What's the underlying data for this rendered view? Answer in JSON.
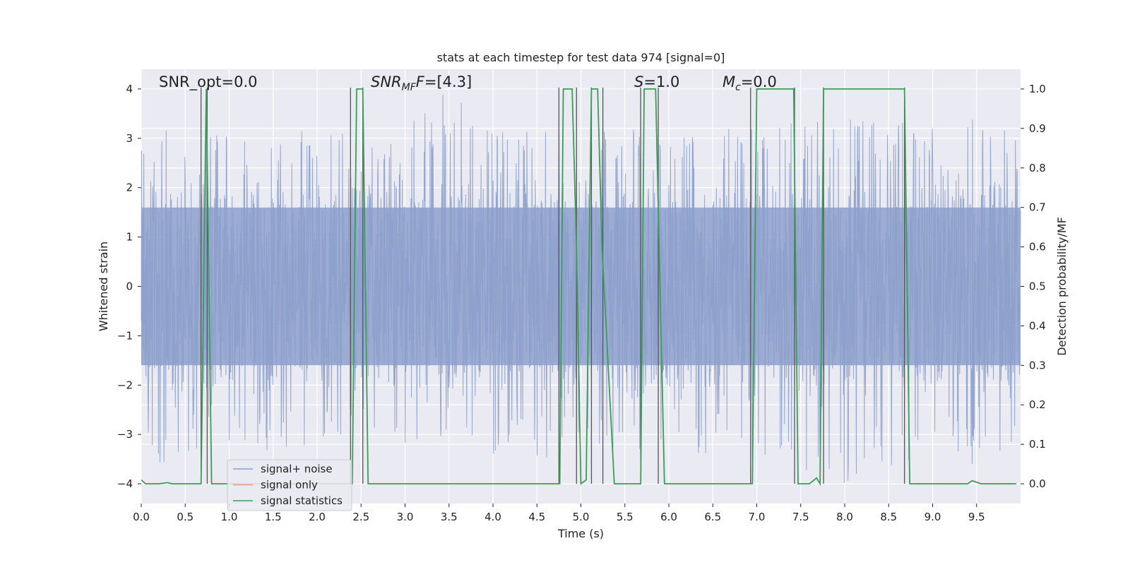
{
  "chart_data": {
    "type": "line",
    "title": "stats at each timestep for test data 974 [signal=0]",
    "xlabel": "Time (s)",
    "ylabel": "Whitened strain",
    "y2label": "Detection probability/MF",
    "xlim": [
      0.0,
      10.0
    ],
    "ylim": [
      -4.4,
      4.4
    ],
    "y2lim": [
      -0.05,
      1.05
    ],
    "xticks": [
      0.0,
      0.5,
      1.0,
      1.5,
      2.0,
      2.5,
      3.0,
      3.5,
      4.0,
      4.5,
      5.0,
      5.5,
      6.0,
      6.5,
      7.0,
      7.5,
      8.0,
      8.5,
      9.0,
      9.5
    ],
    "xtick_labels": [
      "0.0",
      "0.5",
      "1.0",
      "1.5",
      "2.0",
      "2.5",
      "3.0",
      "3.5",
      "4.0",
      "4.5",
      "5.0",
      "5.5",
      "6.0",
      "6.5",
      "7.0",
      "7.5",
      "8.0",
      "8.5",
      "9.0",
      "9.5"
    ],
    "yticks": [
      -4,
      -3,
      -2,
      -1,
      0,
      1,
      2,
      3,
      4
    ],
    "ytick_labels": [
      "−4",
      "−3",
      "−2",
      "−1",
      "0",
      "1",
      "2",
      "3",
      "4"
    ],
    "y2ticks": [
      0.0,
      0.1,
      0.2,
      0.3,
      0.4,
      0.5,
      0.6,
      0.7,
      0.8,
      0.9,
      1.0
    ],
    "y2tick_labels": [
      "0.0",
      "0.1",
      "0.2",
      "0.3",
      "0.4",
      "0.5",
      "0.6",
      "0.7",
      "0.8",
      "0.9",
      "1.0"
    ],
    "grid": true,
    "legend_position": "lower-left",
    "annotations": {
      "snr_opt": "SNR_opt=0.0",
      "snr_mf_sym": "SNR",
      "snr_mf_sub": "MF",
      "snr_mf_val": "=[4.3]",
      "s_sym": "S",
      "s_val": "=1.0",
      "mc_sym": "M",
      "mc_sub": "c",
      "mc_val": "=0.0"
    },
    "noise_envelope": {
      "x": [
        0.0,
        0.5,
        1.0,
        1.5,
        2.0,
        2.5,
        3.0,
        3.5,
        4.0,
        4.5,
        5.0,
        5.5,
        6.0,
        6.5,
        7.0,
        7.5,
        8.0,
        8.5,
        9.0,
        9.5,
        10.0
      ],
      "upper_peak": [
        3.3,
        3.2,
        3.1,
        3.3,
        3.3,
        3.0,
        3.3,
        4.0,
        3.2,
        3.2,
        3.3,
        3.2,
        3.1,
        3.2,
        3.3,
        3.3,
        3.4,
        3.4,
        3.2,
        3.4,
        3.3
      ],
      "lower_peak": [
        -3.7,
        -3.5,
        -3.3,
        -3.4,
        -3.3,
        -3.1,
        -3.3,
        -3.6,
        -3.5,
        -3.5,
        -3.4,
        -3.4,
        -3.4,
        -3.4,
        -3.6,
        -3.8,
        -4.0,
        -3.7,
        -3.4,
        -3.7,
        -3.4
      ],
      "band": 1.6
    },
    "series": [
      {
        "name": "signal+ noise",
        "color": "#8da0cb",
        "style": "dense-noise"
      },
      {
        "name": "signal only",
        "color": "#e8a07c",
        "values": []
      },
      {
        "name": "signal statistics",
        "color": "#3a9e56",
        "x": [
          0.0,
          0.05,
          0.1,
          0.2,
          0.3,
          0.35,
          0.45,
          0.68,
          0.74,
          0.8,
          2.4,
          2.45,
          2.52,
          2.58,
          4.76,
          4.8,
          4.9,
          4.95,
          5.0,
          5.06,
          5.12,
          5.19,
          5.24,
          5.38,
          5.68,
          5.72,
          5.85,
          5.95,
          6.95,
          7.0,
          7.42,
          7.47,
          7.55,
          7.6,
          7.68,
          7.72,
          7.76,
          7.82,
          8.68,
          8.74,
          9.3,
          9.4,
          9.45,
          9.55,
          9.95
        ],
        "values": [
          0.01,
          0.0,
          0.0,
          0.0,
          0.003,
          0.0,
          0.0,
          0.0,
          1.0,
          0.0,
          0.0,
          1.0,
          1.0,
          0.0,
          0.0,
          1.0,
          1.0,
          0.6,
          0.0,
          0.01,
          1.0,
          1.0,
          0.6,
          0.0,
          0.0,
          1.0,
          1.0,
          0.0,
          0.0,
          1.0,
          1.0,
          0.0,
          0.0,
          0.0,
          0.015,
          0.0,
          1.0,
          1.0,
          1.0,
          0.0,
          0.0,
          0.0,
          0.008,
          0.0,
          0.0
        ]
      }
    ],
    "vertical_markers": {
      "color": "#555555",
      "x": [
        0.68,
        0.75,
        2.38,
        2.52,
        4.75,
        4.95,
        5.12,
        5.25,
        5.68,
        5.88,
        6.93,
        7.43,
        7.76,
        8.68
      ]
    }
  }
}
